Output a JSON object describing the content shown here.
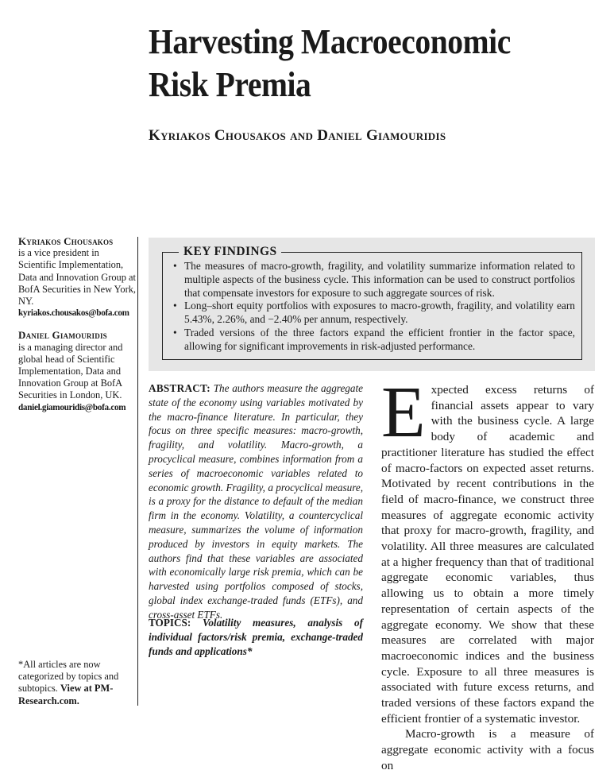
{
  "title": {
    "line1": "Harvesting Macroeconomic",
    "line2": "Risk Premia"
  },
  "authors": {
    "author1": "Kyriakos Chousakos",
    "and": "and",
    "author2": "Daniel Giamouridis"
  },
  "sidebar": {
    "bio1": {
      "name": "Kyriakos Chousakos",
      "text": "is a vice president in Scientific Implementation, Data and Innovation Group at BofA Securities in New York, NY.",
      "email": "kyriakos.chousakos@bofa.com"
    },
    "bio2": {
      "name": "Daniel Giamouridis",
      "text": "is a managing director and global head of Scientific Implementation, Data and Innovation Group at BofA Securities in London, UK.",
      "email": "daniel.giamouridis@bofa.com"
    },
    "footer": {
      "text": "*All articles are now categorized by topics and subtopics.",
      "link": "View at PM-Research.com."
    }
  },
  "key_findings": {
    "title": "KEY FINDINGS",
    "items": [
      "The measures of macro-growth, fragility, and volatility summarize information related to multiple aspects of the business cycle. This information can be used to construct portfolios that compensate investors for exposure to such aggregate sources of risk.",
      "Long–short equity portfolios with exposures to macro-growth, fragility, and volatility earn 5.43%, 2.26%, and −2.40% per annum, respectively.",
      "Traded versions of the three factors expand the efficient frontier in the factor space, allowing for significant improvements in risk-adjusted performance."
    ]
  },
  "abstract": {
    "label": "ABSTRACT:",
    "text": "The authors measure the aggregate state of the economy using variables motivated by the macro-finance literature. In particular, they focus on three specific measures: macro-growth, fragility, and volatility. Macro-growth, a procyclical measure, combines information from a series of macroeconomic variables related to economic growth. Fragility, a procyclical measure, is a proxy for the distance to default of the median firm in the economy. Volatility, a countercyclical measure, summarizes the volume of information produced by investors in equity markets. The authors find that these variables are associated with economically large risk premia, which can be harvested using portfolios composed of stocks, global index exchange-traded funds (ETFs), and cross-asset ETFs."
  },
  "topics": {
    "label": "TOPICS:",
    "text": "Volatility measures, analysis of individual factors/risk premia, exchange-traded funds and applications*"
  },
  "body": {
    "dropcap": "E",
    "para1": "xpected excess returns of financial assets appear to vary with the business cycle. A large body of academic and practitioner literature has studied the effect of macro-factors on expected asset returns. Motivated by recent contributions in the field of macro-finance, we construct three measures of aggregate economic activity that proxy for macro-growth, fragility, and volatility. All three measures are calculated at a higher frequency than that of traditional aggregate economic variables, thus allowing us to obtain a more timely representation of certain aspects of the aggregate economy. We show that these measures are correlated with major macroeconomic indices and the business cycle. Exposure to all three measures is associated with future excess returns, and traded versions of these factors expand the efficient frontier of a systematic investor.",
    "para2": "Macro-growth is a measure of aggregate economic activity with a focus on"
  }
}
